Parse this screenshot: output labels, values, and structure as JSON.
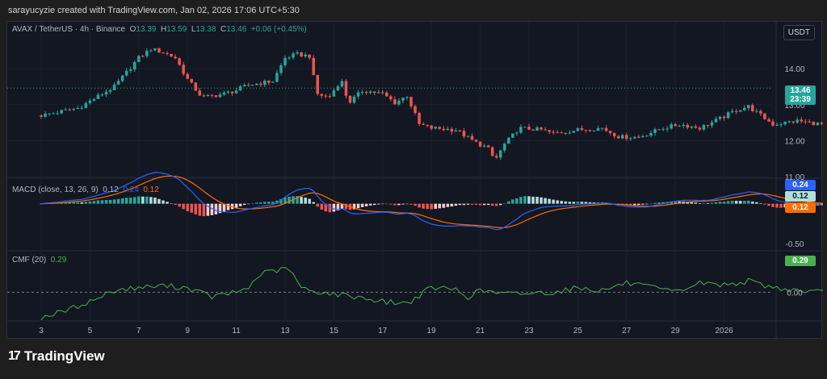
{
  "header": {
    "text": "sarayucyzie created with TradingView.com, Jan 02, 2026 17:06 UTC+5:30"
  },
  "legend": {
    "symbol": "AVAX / TetherUS · 4h · Binance",
    "o_label": "O",
    "o": "13.39",
    "h_label": "H",
    "h": "13.59",
    "l_label": "L",
    "l": "13.38",
    "c_label": "C",
    "c": "13.46",
    "change": "+0.06 (+0.45%)",
    "macd_label": "MACD (close, 13, 26, 9)",
    "macd_hist": "0.12",
    "macd_line": "0.24",
    "macd_signal": "0.12",
    "cmf_label": "CMF (20)",
    "cmf_value": "0.29"
  },
  "currency_button": "USDT",
  "price_tags": {
    "last_price": "13.46",
    "countdown": "23:39",
    "macd_line": "0.24",
    "macd_hist": "0.12",
    "macd_signal": "0.12",
    "cmf": "0.29"
  },
  "footer": {
    "logo_mark": "17",
    "brand": "TradingView"
  },
  "colors": {
    "up": "#26a69a",
    "down": "#ef5350",
    "macd": "#2962ff",
    "signal": "#ff6d00",
    "cmf": "#4caf50",
    "background": "#131722"
  },
  "chart_data": [
    {
      "type": "candlestick",
      "title": "AVAX / TetherUS · 4h · Binance",
      "x_ticks": [
        "3",
        "5",
        "7",
        "9",
        "11",
        "13",
        "15",
        "17",
        "19",
        "21",
        "23",
        "25",
        "27",
        "29",
        "2026"
      ],
      "y_ticks": [
        "14.00",
        "13.00",
        "12.00",
        "11.00"
      ],
      "ylim": [
        11.0,
        14.9
      ],
      "close_anchors": [
        [
          0,
          12.7
        ],
        [
          1.5,
          12.9
        ],
        [
          3,
          13.5
        ],
        [
          4,
          14.3
        ],
        [
          4.5,
          14.55
        ],
        [
          5,
          14.45
        ],
        [
          5.5,
          14.3
        ],
        [
          6,
          13.7
        ],
        [
          6.6,
          13.2
        ],
        [
          7.5,
          13.3
        ],
        [
          8,
          13.4
        ],
        [
          8.5,
          13.55
        ],
        [
          9.5,
          13.65
        ],
        [
          10,
          14.3
        ],
        [
          10.5,
          14.4
        ],
        [
          11,
          14.35
        ],
        [
          11.3,
          13.3
        ],
        [
          11.8,
          13.2
        ],
        [
          12.3,
          13.7
        ],
        [
          12.6,
          13.05
        ],
        [
          13.2,
          13.4
        ],
        [
          14,
          13.3
        ],
        [
          14.5,
          13.05
        ],
        [
          15,
          13.25
        ],
        [
          15.5,
          12.45
        ],
        [
          16,
          12.35
        ],
        [
          17,
          12.3
        ],
        [
          17.8,
          11.95
        ],
        [
          18.3,
          11.8
        ],
        [
          18.6,
          11.45
        ],
        [
          19,
          11.9
        ],
        [
          19.6,
          12.35
        ],
        [
          20.5,
          12.3
        ],
        [
          21,
          12.2
        ],
        [
          22,
          12.3
        ],
        [
          23,
          12.35
        ],
        [
          23.7,
          12.1
        ],
        [
          24.5,
          12.1
        ],
        [
          25.5,
          12.35
        ],
        [
          26.2,
          12.45
        ],
        [
          27,
          12.35
        ],
        [
          27.8,
          12.6
        ],
        [
          28.5,
          12.85
        ],
        [
          29,
          12.95
        ],
        [
          29.6,
          12.65
        ],
        [
          30,
          12.45
        ],
        [
          31,
          12.55
        ],
        [
          32,
          12.45
        ],
        [
          32.5,
          12.35
        ],
        [
          33.3,
          12.3
        ],
        [
          33.6,
          13.7
        ],
        [
          33.8,
          13.85
        ],
        [
          34.3,
          13.46
        ]
      ]
    },
    {
      "type": "macd",
      "title": "MACD (close, 13, 26, 9)",
      "series_names": [
        "Histogram",
        "MACD",
        "Signal"
      ],
      "y_ticks": [
        "-0.50"
      ],
      "last": {
        "histogram": 0.12,
        "macd": 0.24,
        "signal": 0.12
      },
      "ylim": [
        -0.58,
        0.3
      ]
    },
    {
      "type": "line",
      "title": "CMF (20)",
      "y_ticks": [
        "0.00"
      ],
      "last": 0.29,
      "ylim": [
        -0.3,
        0.42
      ],
      "anchors": [
        [
          0,
          -0.27
        ],
        [
          1,
          -0.2
        ],
        [
          2,
          -0.1
        ],
        [
          3,
          0.02
        ],
        [
          4,
          0.05
        ],
        [
          5,
          0.07
        ],
        [
          6,
          0.05
        ],
        [
          7,
          -0.05
        ],
        [
          8,
          0.0
        ],
        [
          8.5,
          0.05
        ],
        [
          9,
          0.2
        ],
        [
          10,
          0.25
        ],
        [
          10.3,
          0.22
        ],
        [
          10.6,
          0.05
        ],
        [
          11,
          0.02
        ],
        [
          12,
          -0.02
        ],
        [
          13,
          -0.05
        ],
        [
          14,
          -0.1
        ],
        [
          15,
          -0.12
        ],
        [
          16,
          0.05
        ],
        [
          17,
          0.03
        ],
        [
          17.5,
          -0.05
        ],
        [
          18,
          0.02
        ],
        [
          19,
          -0.02
        ],
        [
          20,
          -0.01
        ],
        [
          21,
          0.0
        ],
        [
          22,
          0.05
        ],
        [
          23,
          0.02
        ],
        [
          24,
          0.1
        ],
        [
          25,
          0.05
        ],
        [
          26,
          0.0
        ],
        [
          27,
          0.1
        ],
        [
          28,
          0.08
        ],
        [
          29,
          0.12
        ],
        [
          30,
          0.05
        ],
        [
          31,
          0.02
        ],
        [
          32,
          0.0
        ],
        [
          33,
          0.02
        ],
        [
          33.5,
          0.0
        ],
        [
          33.8,
          0.3
        ],
        [
          34.3,
          0.29
        ]
      ]
    }
  ]
}
